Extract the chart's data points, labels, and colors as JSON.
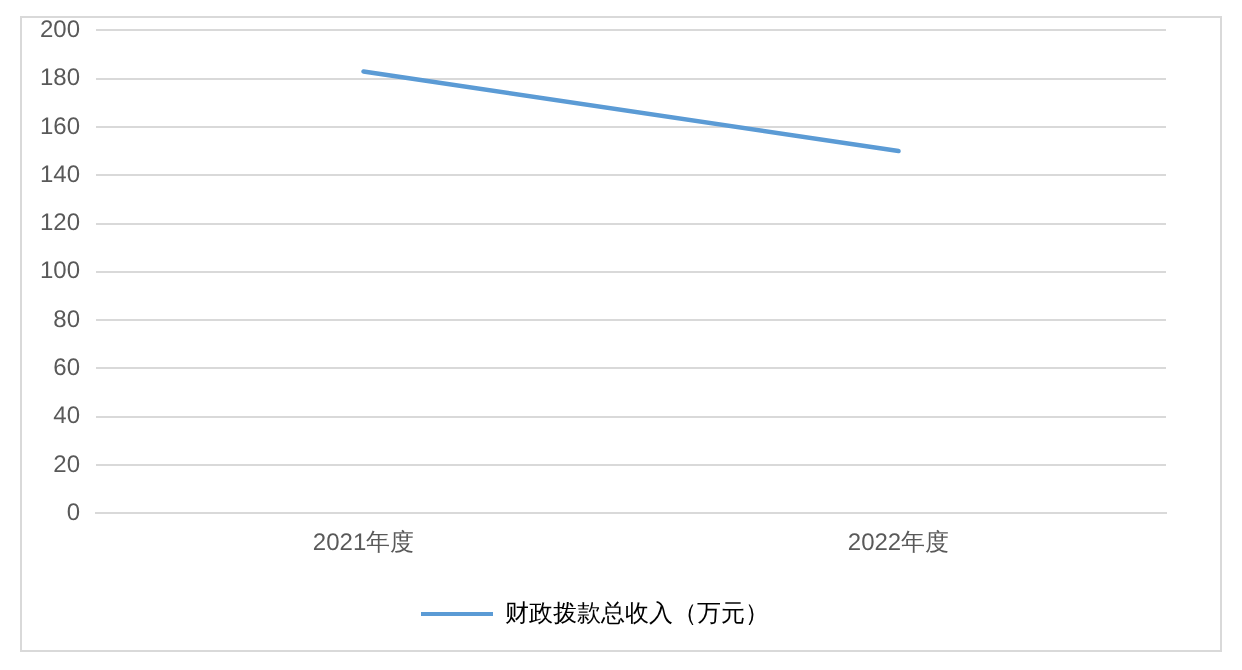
{
  "chart_data": {
    "type": "line",
    "categories": [
      "2021年度",
      "2022年度"
    ],
    "series": [
      {
        "name": "财政拨款总收入（万元）",
        "color": "#5b9bd5",
        "values": [
          183,
          150
        ]
      }
    ],
    "ylim": [
      0,
      200
    ],
    "yticks": [
      0,
      20,
      40,
      60,
      80,
      100,
      120,
      140,
      160,
      180,
      200
    ],
    "grid": "y",
    "legend": "bottom",
    "marker": "none",
    "line_style": "solid"
  }
}
